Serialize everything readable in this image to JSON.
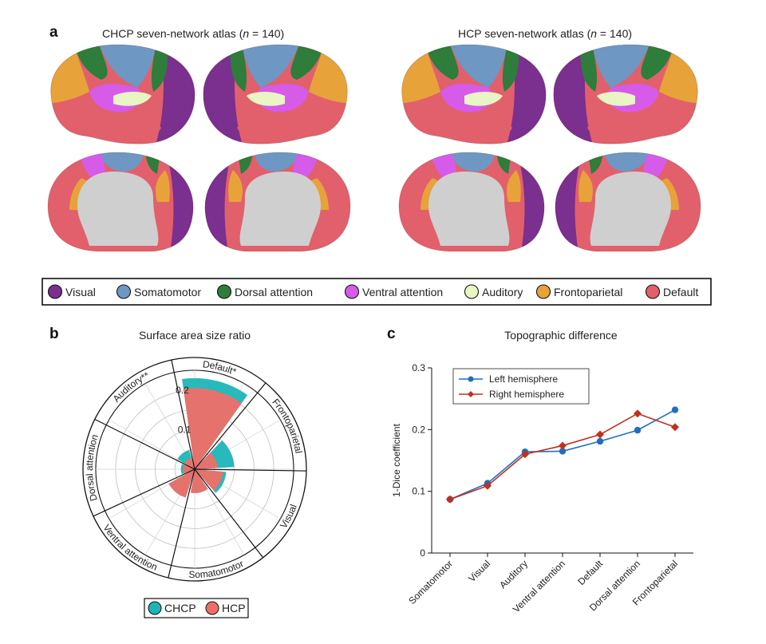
{
  "panel_a": {
    "letter": "a",
    "title_left_prefix": "CHCP seven-network atlas (",
    "title_left_n": "n",
    "title_left_suffix": " = 140)",
    "title_right_prefix": "HCP seven-network atlas (",
    "title_right_n": "n",
    "title_right_suffix": " = 140)",
    "network_colors": {
      "Visual": "#7b2f8e",
      "Somatomotor": "#6e97c4",
      "Dorsal attention": "#2e7d3a",
      "Ventral attention": "#d65be8",
      "Auditory": "#e9f5c4",
      "Frontoparietal": "#e8a23a",
      "Default": "#e2606b",
      "Medial wall": "#cfcfcf"
    },
    "legend": [
      {
        "label": "Visual",
        "color": "#7b2f8e"
      },
      {
        "label": "Somatomotor",
        "color": "#6e97c4"
      },
      {
        "label": "Dorsal attention",
        "color": "#2e7d3a"
      },
      {
        "label": "Ventral attention",
        "color": "#d65be8"
      },
      {
        "label": "Auditory",
        "color": "#e9f5c4"
      },
      {
        "label": "Frontoparietal",
        "color": "#e8a23a"
      },
      {
        "label": "Default",
        "color": "#e2606b"
      }
    ]
  },
  "panel_b": {
    "letter": "b",
    "chart_data": {
      "type": "polar-bar",
      "title": "Surface area size ratio",
      "categories": [
        "Default*",
        "Frontoparietal",
        "Visual",
        "Somatomotor",
        "Ventral attention",
        "Dorsal attention",
        "Auditory**"
      ],
      "radial_ticks": [
        0.1,
        0.2
      ],
      "rmax": 0.25,
      "series": [
        {
          "name": "CHCP",
          "color": "#1bb5b8",
          "values": [
            0.23,
            0.1,
            0.08,
            0.06,
            0.075,
            0.035,
            0.05
          ]
        },
        {
          "name": "HCP",
          "color": "#ef6e67",
          "values": [
            0.205,
            0.058,
            0.072,
            0.06,
            0.075,
            0.03,
            0.03
          ]
        }
      ],
      "legend": [
        "CHCP",
        "HCP"
      ]
    }
  },
  "panel_c": {
    "letter": "c",
    "chart_data": {
      "type": "line",
      "title": "Topographic difference",
      "ylabel": "1-Dice coefficient",
      "categories": [
        "Somatomotor",
        "Visual",
        "Auditory",
        "Ventral attention",
        "Default",
        "Dorsal attention",
        "Frontoparietal"
      ],
      "ylim": [
        0,
        0.3
      ],
      "yticks": [
        0,
        0.1,
        0.2,
        0.3
      ],
      "ytick_labels": [
        "0",
        "0.1",
        "0.2",
        "0.3"
      ],
      "series": [
        {
          "name": "Left hemisphere",
          "color": "#1f6fc0",
          "marker": "circle",
          "values": [
            0.087,
            0.113,
            0.164,
            0.165,
            0.181,
            0.199,
            0.232
          ]
        },
        {
          "name": "Right hemisphere",
          "color": "#c0301f",
          "marker": "diamond",
          "values": [
            0.087,
            0.109,
            0.16,
            0.174,
            0.192,
            0.226,
            0.204
          ]
        }
      ]
    }
  }
}
